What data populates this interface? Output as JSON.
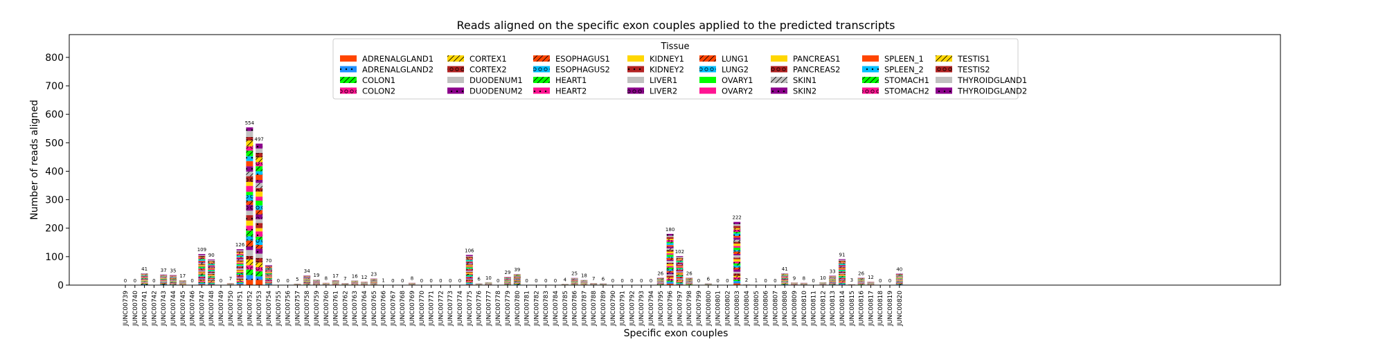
{
  "chart_data": {
    "type": "bar",
    "stacked": true,
    "title": "Reads aligned on the specific exon couples applied to the predicted transcripts",
    "xlabel": "Specific exon couples",
    "ylabel": "Number of reads aligned",
    "ylim": [
      0,
      880
    ],
    "yticks": [
      0,
      100,
      200,
      300,
      400,
      500,
      600,
      700,
      800
    ],
    "legend_title": "Tissue",
    "legend_location": "top-center",
    "categories": [
      "JUNC00739",
      "JUNC00740",
      "JUNC00741",
      "JUNC00742",
      "JUNC00743",
      "JUNC00744",
      "JUNC00745",
      "JUNC00746",
      "JUNC00747",
      "JUNC00748",
      "JUNC00749",
      "JUNC00750",
      "JUNC00751",
      "JUNC00752",
      "JUNC00753",
      "JUNC00754",
      "JUNC00755",
      "JUNC00756",
      "JUNC00757",
      "JUNC00758",
      "JUNC00759",
      "JUNC00760",
      "JUNC00761",
      "JUNC00762",
      "JUNC00763",
      "JUNC00764",
      "JUNC00765",
      "JUNC00766",
      "JUNC00767",
      "JUNC00768",
      "JUNC00769",
      "JUNC00770",
      "JUNC00771",
      "JUNC00772",
      "JUNC00773",
      "JUNC00774",
      "JUNC00775",
      "JUNC00776",
      "JUNC00777",
      "JUNC00778",
      "JUNC00779",
      "JUNC00780",
      "JUNC00781",
      "JUNC00782",
      "JUNC00783",
      "JUNC00784",
      "JUNC00785",
      "JUNC00786",
      "JUNC00787",
      "JUNC00788",
      "JUNC00789",
      "JUNC00790",
      "JUNC00791",
      "JUNC00792",
      "JUNC00793",
      "JUNC00794",
      "JUNC00795",
      "JUNC00796",
      "JUNC00797",
      "JUNC00798",
      "JUNC00799",
      "JUNC00800",
      "JUNC00801",
      "JUNC00802",
      "JUNC00803",
      "JUNC00804",
      "JUNC00805",
      "JUNC00806",
      "JUNC00807",
      "JUNC00808",
      "JUNC00809",
      "JUNC00810",
      "JUNC00811",
      "JUNC00812",
      "JUNC00813",
      "JUNC00814",
      "JUNC00815",
      "JUNC00816",
      "JUNC00817",
      "JUNC00818",
      "JUNC00819",
      "JUNC00820"
    ],
    "totals": [
      0,
      0,
      41,
      0,
      37,
      35,
      17,
      0,
      109,
      90,
      0,
      7,
      126,
      554,
      497,
      70,
      0,
      0,
      5,
      34,
      19,
      8,
      17,
      7,
      16,
      12,
      23,
      1,
      0,
      0,
      8,
      0,
      0,
      0,
      0,
      0,
      106,
      6,
      10,
      0,
      29,
      39,
      0,
      0,
      0,
      0,
      4,
      25,
      18,
      7,
      6,
      0,
      0,
      0,
      0,
      0,
      26,
      180,
      102,
      26,
      0,
      6,
      0,
      0,
      222,
      2,
      1,
      0,
      0,
      41,
      9,
      8,
      0,
      10,
      33,
      91,
      3,
      26,
      12,
      0,
      0,
      40
    ],
    "series": [
      {
        "name": "ADRENALGLAND1",
        "color": "#ff4500",
        "hatch": "none"
      },
      {
        "name": "ADRENALGLAND2",
        "color": "#1e90ff",
        "hatch": "dots"
      },
      {
        "name": "COLON1",
        "color": "#00ff00",
        "hatch": "slash"
      },
      {
        "name": "COLON2",
        "color": "#ff1493",
        "hatch": "circles"
      },
      {
        "name": "CORTEX1",
        "color": "#ffd700",
        "hatch": "slash"
      },
      {
        "name": "CORTEX2",
        "color": "#b22222",
        "hatch": "circles"
      },
      {
        "name": "DUODENUM1",
        "color": "#c0c0c0",
        "hatch": "none"
      },
      {
        "name": "DUODENUM2",
        "color": "#8b008b",
        "hatch": "dots"
      },
      {
        "name": "ESOPHAGUS1",
        "color": "#ff4500",
        "hatch": "slash"
      },
      {
        "name": "ESOPHAGUS2",
        "color": "#00bfff",
        "hatch": "circles"
      },
      {
        "name": "HEART1",
        "color": "#00ff00",
        "hatch": "slash"
      },
      {
        "name": "HEART2",
        "color": "#ff1493",
        "hatch": "dots"
      },
      {
        "name": "KIDNEY1",
        "color": "#ffd700",
        "hatch": "none"
      },
      {
        "name": "KIDNEY2",
        "color": "#b22222",
        "hatch": "dots"
      },
      {
        "name": "LIVER1",
        "color": "#c0c0c0",
        "hatch": "none"
      },
      {
        "name": "LIVER2",
        "color": "#8b008b",
        "hatch": "circles"
      },
      {
        "name": "LUNG1",
        "color": "#ff4500",
        "hatch": "slash"
      },
      {
        "name": "LUNG2",
        "color": "#00bfff",
        "hatch": "circles"
      },
      {
        "name": "OVARY1",
        "color": "#00ff00",
        "hatch": "none"
      },
      {
        "name": "OVARY2",
        "color": "#ff1493",
        "hatch": "none"
      },
      {
        "name": "PANCREAS1",
        "color": "#ffd700",
        "hatch": "none"
      },
      {
        "name": "PANCREAS2",
        "color": "#b22222",
        "hatch": "circles"
      },
      {
        "name": "SKIN1",
        "color": "#c0c0c0",
        "hatch": "slash"
      },
      {
        "name": "SKIN2",
        "color": "#8b008b",
        "hatch": "dots"
      },
      {
        "name": "SPLEEN_1",
        "color": "#ff4500",
        "hatch": "none"
      },
      {
        "name": "SPLEEN_2",
        "color": "#00bfff",
        "hatch": "dots"
      },
      {
        "name": "STOMACH1",
        "color": "#00ff00",
        "hatch": "slash"
      },
      {
        "name": "STOMACH2",
        "color": "#ff1493",
        "hatch": "circles"
      },
      {
        "name": "TESTIS1",
        "color": "#ffd700",
        "hatch": "slash"
      },
      {
        "name": "TESTIS2",
        "color": "#b22222",
        "hatch": "circles"
      },
      {
        "name": "THYROIDGLAND1",
        "color": "#c0c0c0",
        "hatch": "none"
      },
      {
        "name": "THYROIDGLAND2",
        "color": "#8b008b",
        "hatch": "dots"
      }
    ]
  }
}
